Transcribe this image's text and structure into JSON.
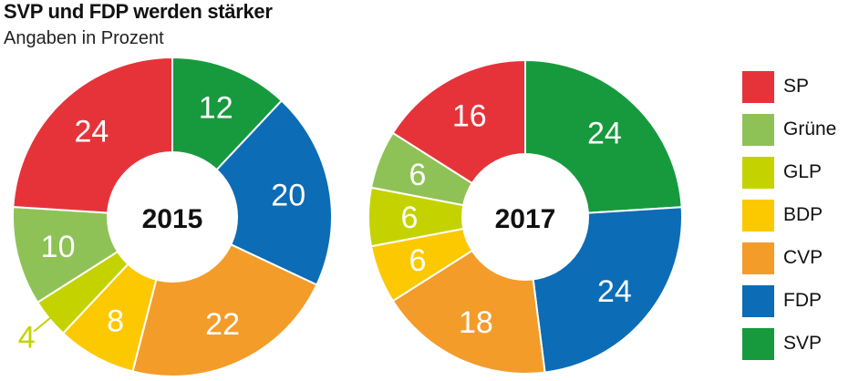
{
  "header": {
    "title": "SVP und FDP werden stärker",
    "subtitle": "Angaben in Prozent"
  },
  "colors": {
    "SP": "#e6333a",
    "Grüne": "#8fc256",
    "GLP": "#c4d300",
    "BDP": "#fcc900",
    "CVP": "#f39c2a",
    "FDP": "#0c6cb5",
    "SVP": "#169a3d"
  },
  "legend": [
    "SP",
    "Grüne",
    "GLP",
    "BDP",
    "CVP",
    "FDP",
    "SVP"
  ],
  "chart_data": [
    {
      "type": "pie",
      "center_label": "2015",
      "slices": [
        {
          "party": "SVP",
          "value": 12,
          "label": "12"
        },
        {
          "party": "FDP",
          "value": 20,
          "label": "20"
        },
        {
          "party": "CVP",
          "value": 22,
          "label": "22"
        },
        {
          "party": "BDP",
          "value": 8,
          "label": "8"
        },
        {
          "party": "GLP",
          "value": 4,
          "label": "4"
        },
        {
          "party": "Grüne",
          "value": 10,
          "label": "10"
        },
        {
          "party": "SP",
          "value": 24,
          "label": "24"
        }
      ]
    },
    {
      "type": "pie",
      "center_label": "2017",
      "slices": [
        {
          "party": "SVP",
          "value": 24,
          "label": "24"
        },
        {
          "party": "FDP",
          "value": 24,
          "label": "24"
        },
        {
          "party": "CVP",
          "value": 18,
          "label": "18"
        },
        {
          "party": "BDP",
          "value": 6,
          "label": "6"
        },
        {
          "party": "GLP",
          "value": 6,
          "label": "6"
        },
        {
          "party": "Grüne",
          "value": 6,
          "label": "6"
        },
        {
          "party": "SP",
          "value": 16,
          "label": "16"
        }
      ]
    }
  ]
}
